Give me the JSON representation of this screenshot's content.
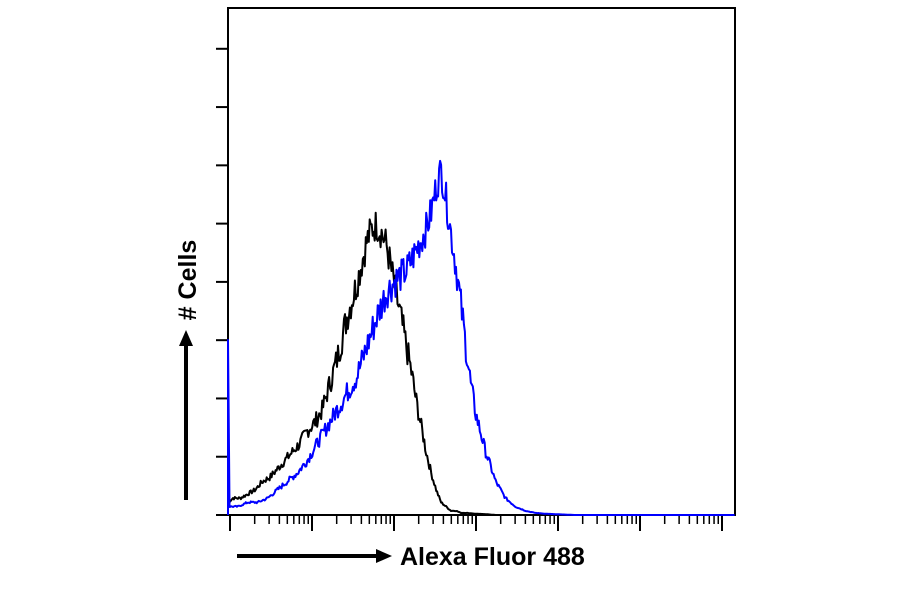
{
  "chart_data": {
    "type": "line",
    "title": "",
    "xlabel": "Alexa Fluor 488",
    "ylabel": "# Cells",
    "x_scale": "log",
    "xlim": [
      0,
      1023
    ],
    "ylim": [
      0,
      100
    ],
    "x_tick_labels": [],
    "y_tick_labels": [],
    "grid": false,
    "legend": "none",
    "series": [
      {
        "color": "#000000",
        "x": [
          0,
          10,
          25,
          40,
          55,
          70,
          85,
          100,
          115,
          130,
          145,
          160,
          175,
          190,
          200,
          210,
          220,
          230,
          240,
          250,
          260,
          270,
          280,
          290,
          300,
          310,
          320,
          330,
          340,
          350,
          360,
          370,
          380,
          390,
          400,
          410,
          420,
          430,
          440,
          450,
          460,
          470,
          480,
          500,
          520,
          540,
          560,
          1023
        ],
        "y": [
          3,
          4,
          4,
          5,
          6,
          8,
          9,
          11,
          13,
          15,
          17,
          20,
          22,
          25,
          29,
          33,
          37,
          42,
          47,
          51,
          55,
          60,
          65,
          68,
          69,
          67,
          64,
          58,
          52,
          46,
          40,
          34,
          27,
          21,
          15,
          10,
          6,
          3,
          2,
          1,
          1,
          0.5,
          0.5,
          0.3,
          0.2,
          0,
          0,
          0
        ]
      },
      {
        "color": "#0000ff",
        "x": [
          0,
          20,
          40,
          60,
          80,
          100,
          120,
          140,
          160,
          180,
          200,
          220,
          240,
          260,
          280,
          300,
          320,
          340,
          360,
          380,
          400,
          410,
          420,
          430,
          440,
          450,
          460,
          470,
          480,
          490,
          500,
          520,
          540,
          560,
          580,
          600,
          620,
          640,
          660,
          680,
          700,
          1023
        ],
        "y": [
          2,
          2,
          3,
          3,
          4,
          6,
          8,
          10,
          13,
          17,
          21,
          25,
          29,
          33,
          40,
          47,
          53,
          56,
          58,
          63,
          68,
          72,
          78,
          82,
          75,
          67,
          59,
          50,
          40,
          31,
          24,
          15,
          8,
          4,
          2,
          1,
          0.5,
          0.3,
          0.2,
          0.1,
          0,
          0
        ]
      }
    ]
  }
}
